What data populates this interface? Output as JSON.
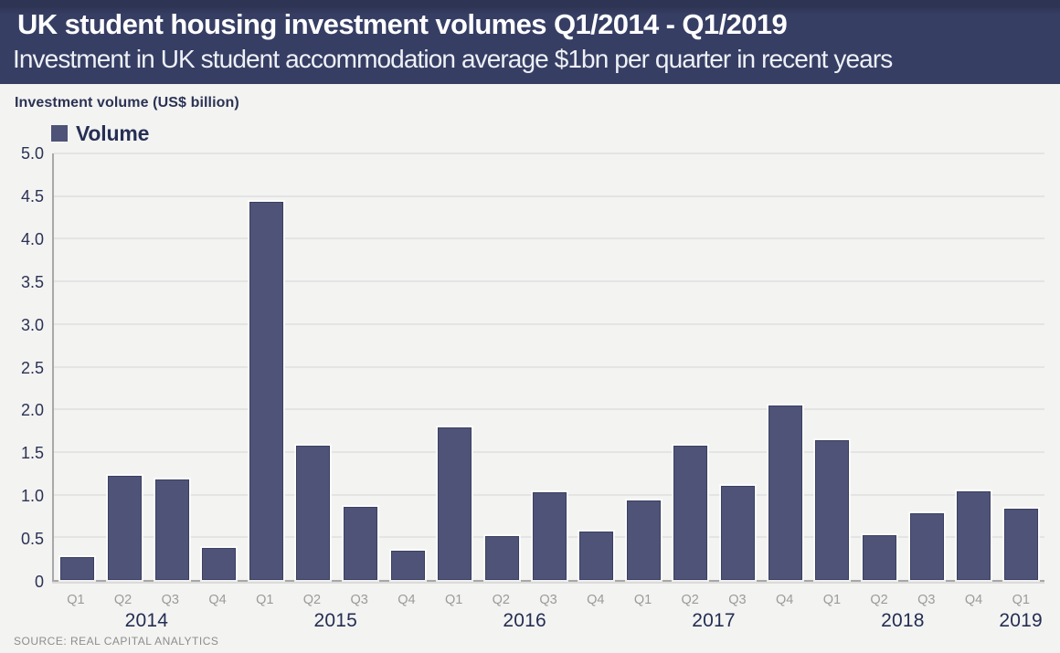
{
  "header": {
    "title": "UK student housing investment volumes Q1/2014 - Q1/2019",
    "subtitle": "Investment in UK student accommodation average $1bn per quarter in recent years"
  },
  "chart": {
    "axis_title": "Investment volume (US$ billion)",
    "legend_label": "Volume",
    "source": "SOURCE: REAL CAPITAL ANALYTICS"
  },
  "colors": {
    "header_bg": "#363e64",
    "bg": "#f3f3f2",
    "bar_fill": "#4e5377",
    "bar_border": "#3a4061",
    "navy_text": "#2b3254",
    "gray_text": "#9b9b9b",
    "source_text": "#8d8d8d",
    "gridline": "#e4e4e4",
    "axis_line": "#a8a8a8"
  },
  "chart_data": {
    "type": "bar",
    "title": "UK student housing investment volumes Q1/2014 - Q1/2019",
    "subtitle": "Investment in UK student accommodation average $1bn per quarter in recent years",
    "xlabel": "",
    "ylabel": "Investment volume (US$ billion)",
    "ylim": [
      0,
      5.0
    ],
    "yticks": [
      "0",
      "0.5",
      "1.0",
      "1.5",
      "2.0",
      "2.5",
      "3.0",
      "3.5",
      "4.0",
      "4.5",
      "5.0"
    ],
    "grid": "horizontal",
    "legend": [
      "Volume"
    ],
    "legend_position": "top-left",
    "categories": [
      "Q1",
      "Q2",
      "Q3",
      "Q4",
      "Q1",
      "Q2",
      "Q3",
      "Q4",
      "Q1",
      "Q2",
      "Q3",
      "Q4",
      "Q1",
      "Q2",
      "Q3",
      "Q4",
      "Q1",
      "Q2",
      "Q3",
      "Q4",
      "Q1"
    ],
    "year_groups": [
      {
        "label": "2014",
        "span": 4
      },
      {
        "label": "2015",
        "span": 4
      },
      {
        "label": "2016",
        "span": 4
      },
      {
        "label": "2017",
        "span": 4
      },
      {
        "label": "2018",
        "span": 4
      },
      {
        "label": "2019",
        "span": 1
      }
    ],
    "series": [
      {
        "name": "Volume",
        "values": [
          0.27,
          1.22,
          1.18,
          0.38,
          4.43,
          1.57,
          0.86,
          0.34,
          1.79,
          0.51,
          1.03,
          0.57,
          0.93,
          1.57,
          1.1,
          2.05,
          1.64,
          0.53,
          0.78,
          1.04,
          0.84
        ]
      }
    ],
    "source": "SOURCE: REAL CAPITAL ANALYTICS"
  }
}
